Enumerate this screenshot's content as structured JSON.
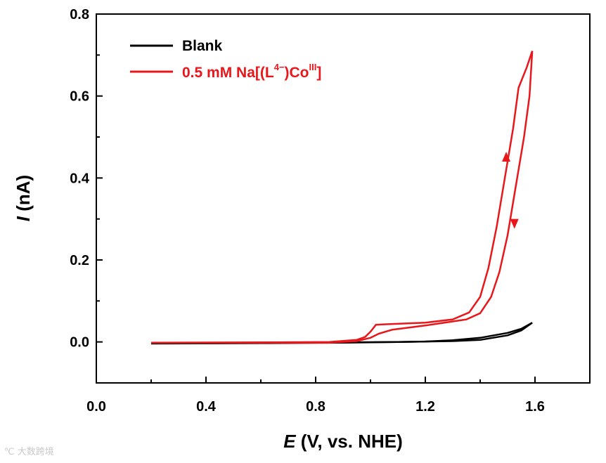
{
  "chart_data": {
    "type": "line",
    "title": "",
    "xlabel_italic": "E",
    "xlabel_rest": " (V, vs. NHE)",
    "ylabel_italic": "I",
    "ylabel_rest": " (nA)",
    "xlim": [
      0.0,
      1.8
    ],
    "ylim": [
      -0.1,
      0.8
    ],
    "x_ticks": [
      0.0,
      0.4,
      0.8,
      1.2,
      1.6
    ],
    "x_tick_labels": [
      "0.0",
      "0.4",
      "0.8",
      "1.2",
      "1.6"
    ],
    "y_ticks": [
      0.0,
      0.2,
      0.4,
      0.6,
      0.8
    ],
    "y_tick_labels": [
      "0.0",
      "0.2",
      "0.4",
      "0.6",
      "0.8"
    ],
    "legend_position": "top-left",
    "series": [
      {
        "name": "Blank",
        "color": "#000000",
        "forward": [
          [
            0.2,
            -0.003
          ],
          [
            0.6,
            -0.002
          ],
          [
            0.9,
            -0.001
          ],
          [
            1.1,
            0.0
          ],
          [
            1.2,
            0.001
          ],
          [
            1.3,
            0.004
          ],
          [
            1.4,
            0.01
          ],
          [
            1.5,
            0.022
          ],
          [
            1.55,
            0.032
          ],
          [
            1.59,
            0.047
          ]
        ],
        "reverse": [
          [
            1.59,
            0.047
          ],
          [
            1.55,
            0.028
          ],
          [
            1.5,
            0.016
          ],
          [
            1.4,
            0.005
          ],
          [
            1.3,
            0.002
          ],
          [
            1.1,
            0.0
          ],
          [
            0.9,
            -0.002
          ],
          [
            0.6,
            -0.003
          ],
          [
            0.2,
            -0.004
          ]
        ]
      },
      {
        "name": "0.5 mM Na[(L4−)CoIII]",
        "color": "#e8171b",
        "forward": [
          [
            0.2,
            -0.002
          ],
          [
            0.6,
            -0.001
          ],
          [
            0.85,
            0.0
          ],
          [
            0.95,
            0.005
          ],
          [
            0.98,
            0.012
          ],
          [
            1.0,
            0.025
          ],
          [
            1.02,
            0.042
          ],
          [
            1.05,
            0.043
          ],
          [
            1.2,
            0.047
          ],
          [
            1.3,
            0.055
          ],
          [
            1.36,
            0.072
          ],
          [
            1.4,
            0.11
          ],
          [
            1.43,
            0.18
          ],
          [
            1.46,
            0.28
          ],
          [
            1.49,
            0.4
          ],
          [
            1.52,
            0.52
          ],
          [
            1.54,
            0.62
          ],
          [
            1.57,
            0.67
          ],
          [
            1.59,
            0.71
          ]
        ],
        "reverse": [
          [
            1.59,
            0.71
          ],
          [
            1.58,
            0.6
          ],
          [
            1.56,
            0.5
          ],
          [
            1.53,
            0.38
          ],
          [
            1.5,
            0.26
          ],
          [
            1.47,
            0.17
          ],
          [
            1.44,
            0.11
          ],
          [
            1.4,
            0.07
          ],
          [
            1.35,
            0.055
          ],
          [
            1.2,
            0.04
          ],
          [
            1.08,
            0.03
          ],
          [
            1.03,
            0.02
          ],
          [
            1.0,
            0.01
          ],
          [
            0.95,
            0.002
          ],
          [
            0.85,
            -0.002
          ],
          [
            0.6,
            -0.002
          ],
          [
            0.2,
            -0.002
          ]
        ]
      }
    ],
    "legend": {
      "blank": "Blank",
      "red_prefix": "0.5 mM Na[(L",
      "red_sup1": "4−",
      "red_mid": ")Co",
      "red_sup2": "III",
      "red_suffix": "]"
    }
  },
  "watermark": "℃ 大数跨境"
}
